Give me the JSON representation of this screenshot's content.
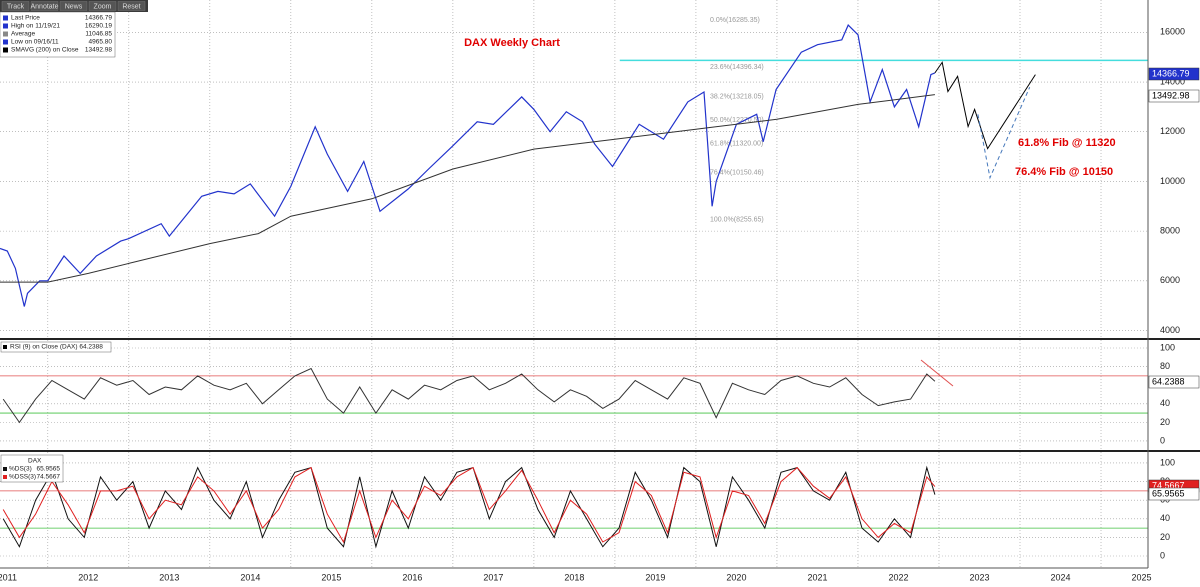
{
  "toolbar": [
    "Track",
    "Annotate",
    "News",
    "Zoom",
    "Reset"
  ],
  "chart_data": [
    {
      "type": "line",
      "title": "DAX Weekly Chart",
      "xlim": [
        2011.41,
        2025.58
      ],
      "ylim": [
        3700,
        17300
      ],
      "yticks": [
        4000,
        6000,
        8000,
        10000,
        12000,
        14000,
        16000
      ],
      "x_gridlines": [
        2012,
        2013,
        2014,
        2015,
        2016,
        2017,
        2018,
        2019,
        2020,
        2021,
        2022,
        2023,
        2024,
        2025
      ],
      "grid": true,
      "legend": [
        {
          "label": "Last Price",
          "value": "14366.79",
          "color": "#2233cc"
        },
        {
          "label": "High on 11/19/21",
          "value": "16290.19",
          "color": "#2233cc"
        },
        {
          "label": "Average",
          "value": "11046.85",
          "color": "#888888"
        },
        {
          "label": "Low on 09/16/11",
          "value": "4965.80",
          "color": "#2233cc"
        },
        {
          "label": "SMAVG (200)  on Close",
          "value": "13492.98",
          "color": "#000000"
        }
      ],
      "series": [
        {
          "color": "#2233cc",
          "x": [
            2011.41,
            2011.5,
            2011.6,
            2011.71,
            2011.75,
            2011.9,
            2012.0,
            2012.2,
            2012.4,
            2012.6,
            2012.9,
            2013.0,
            2013.4,
            2013.5,
            2013.9,
            2014.1,
            2014.3,
            2014.5,
            2014.8,
            2015.0,
            2015.3,
            2015.45,
            2015.7,
            2015.9,
            2016.1,
            2016.45,
            2016.7,
            2016.99,
            2017.3,
            2017.5,
            2017.85,
            2018.0,
            2018.2,
            2018.4,
            2018.6,
            2018.75,
            2018.97,
            2019.3,
            2019.6,
            2019.9,
            2020.1,
            2020.2,
            2020.25,
            2020.5,
            2020.75,
            2020.83,
            2020.99,
            2021.3,
            2021.5,
            2021.8,
            2021.88,
            2022.0,
            2022.15,
            2022.3,
            2022.45,
            2022.6,
            2022.75,
            2022.9,
            2022.95
          ],
          "values": [
            7300,
            7200,
            6500,
            4965.8,
            5500,
            6000,
            6000,
            7000,
            6300,
            7000,
            7600,
            7700,
            8300,
            7800,
            9400,
            9600,
            9500,
            9900,
            8600,
            9800,
            12200,
            11100,
            9600,
            10800,
            8800,
            9700,
            10500,
            11400,
            12400,
            12300,
            13400,
            12900,
            12000,
            12800,
            12400,
            11500,
            10600,
            12300,
            11700,
            13200,
            13600,
            9000,
            10000,
            12300,
            12700,
            11600,
            13700,
            15200,
            15500,
            15700,
            16290.19,
            15900,
            13200,
            14500,
            13000,
            13700,
            12200,
            14300,
            14366.79
          ]
        },
        {
          "color": "#333333",
          "x": [
            2011.41,
            2012.0,
            2012.5,
            2013.0,
            2014.0,
            2014.6,
            2015.0,
            2016.0,
            2017.0,
            2018.0,
            2019.0,
            2020.0,
            2021.0,
            2022.0,
            2022.95
          ],
          "values": [
            5950,
            5950,
            6300,
            6700,
            7500,
            7900,
            8600,
            9300,
            10500,
            11300,
            11700,
            12100,
            12500,
            13100,
            13492.98
          ]
        },
        {
          "color": "#000000",
          "x": [
            2022.95,
            2023.04,
            2023.11,
            2023.23,
            2023.36,
            2023.44,
            2023.6,
            2024.19
          ],
          "values": [
            14366.79,
            14790,
            13620,
            14230,
            12210,
            12900,
            11320,
            14300
          ]
        },
        {
          "color": "#4477bb",
          "dashed": true,
          "x": [
            2023.48,
            2023.63,
            2024.12
          ],
          "values": [
            12700,
            10150,
            13790
          ]
        }
      ],
      "hlines": [
        {
          "value": 14870,
          "from": 2019.06,
          "color": "#44dddd"
        }
      ],
      "fib_levels": [
        {
          "value": 16285.35,
          "label": "0.0%(16285.35)"
        },
        {
          "value": 14396.34,
          "label": "23.6%(14396.34)"
        },
        {
          "value": 13218.05,
          "label": "38.2%(13218.05)"
        },
        {
          "value": 12270.5,
          "label": "50.0%(12270.50)"
        },
        {
          "value": 11320.0,
          "label": "61.8%(11320.00)"
        },
        {
          "value": 10150.46,
          "label": "76.4%(10150.46)"
        },
        {
          "value": 8255.65,
          "label": "100.0%(8255.65)"
        }
      ],
      "annotations": [
        "61.8% Fib @ 11320",
        "76.4% Fib @ 10150"
      ]
    },
    {
      "type": "line",
      "legend": "RSI (9)  on Close (DAX) 64.2388",
      "value_tag": "64.2388",
      "xlim": [
        2011.41,
        2025.58
      ],
      "ylim": [
        -9.7,
        108.6
      ],
      "yticks": [
        0,
        20,
        40,
        80,
        100
      ],
      "x_gridlines": [
        2012,
        2013,
        2014,
        2015,
        2016,
        2017,
        2018,
        2019,
        2020,
        2021,
        2022,
        2023,
        2024,
        2025
      ],
      "hlines": [
        {
          "value": 70,
          "color": "#e05050"
        },
        {
          "value": 30,
          "color": "#40c040"
        }
      ],
      "series": [
        {
          "color": "#333333",
          "x": [
            2011.45,
            2011.65,
            2011.85,
            2012.05,
            2012.25,
            2012.45,
            2012.65,
            2012.85,
            2013.05,
            2013.25,
            2013.45,
            2013.65,
            2013.85,
            2014.05,
            2014.25,
            2014.45,
            2014.65,
            2014.85,
            2015.05,
            2015.25,
            2015.45,
            2015.65,
            2015.85,
            2016.05,
            2016.25,
            2016.45,
            2016.65,
            2016.85,
            2017.05,
            2017.25,
            2017.45,
            2017.65,
            2017.85,
            2018.05,
            2018.25,
            2018.45,
            2018.65,
            2018.85,
            2019.05,
            2019.25,
            2019.45,
            2019.65,
            2019.85,
            2020.05,
            2020.25,
            2020.45,
            2020.65,
            2020.85,
            2021.05,
            2021.25,
            2021.45,
            2021.65,
            2021.85,
            2022.05,
            2022.25,
            2022.45,
            2022.65,
            2022.85,
            2022.95
          ],
          "values": [
            45,
            20,
            45,
            65,
            55,
            45,
            68,
            60,
            65,
            50,
            58,
            55,
            70,
            60,
            55,
            62,
            40,
            55,
            70,
            78,
            45,
            30,
            58,
            30,
            55,
            45,
            60,
            55,
            65,
            70,
            55,
            62,
            72,
            55,
            42,
            55,
            48,
            35,
            45,
            65,
            55,
            45,
            68,
            62,
            25,
            62,
            55,
            50,
            65,
            70,
            62,
            58,
            68,
            50,
            38,
            42,
            45,
            72,
            64.2388
          ]
        }
      ]
    },
    {
      "type": "line",
      "legend_title": "DAX",
      "xlim": [
        2011.41,
        2025.58
      ],
      "ylim": [
        -12.9,
        111.8
      ],
      "yticks": [
        0,
        20,
        40,
        60,
        80,
        100
      ],
      "xticks": [
        {
          "value": 2011.5,
          "label": "2011"
        },
        {
          "value": 2012.5,
          "label": "2012"
        },
        {
          "value": 2013.5,
          "label": "2013"
        },
        {
          "value": 2014.5,
          "label": "2014"
        },
        {
          "value": 2015.5,
          "label": "2015"
        },
        {
          "value": 2016.5,
          "label": "2016"
        },
        {
          "value": 2017.5,
          "label": "2017"
        },
        {
          "value": 2018.5,
          "label": "2018"
        },
        {
          "value": 2019.5,
          "label": "2019"
        },
        {
          "value": 2020.5,
          "label": "2020"
        },
        {
          "value": 2021.5,
          "label": "2021"
        },
        {
          "value": 2022.5,
          "label": "2022"
        },
        {
          "value": 2023.5,
          "label": "2023"
        },
        {
          "value": 2024.5,
          "label": "2024"
        },
        {
          "value": 2025.5,
          "label": "2025"
        }
      ],
      "x_gridlines": [
        2012,
        2013,
        2014,
        2015,
        2016,
        2017,
        2018,
        2019,
        2020,
        2021,
        2022,
        2023,
        2024,
        2025
      ],
      "hlines": [
        {
          "value": 70,
          "color": "#e05050"
        },
        {
          "value": 30,
          "color": "#40c040"
        }
      ],
      "series": [
        {
          "name": "%DS(3)",
          "last_label": "65.9565",
          "color": "#111111",
          "x": [
            2011.45,
            2011.65,
            2011.85,
            2012.05,
            2012.25,
            2012.45,
            2012.65,
            2012.85,
            2013.05,
            2013.25,
            2013.45,
            2013.65,
            2013.85,
            2014.05,
            2014.25,
            2014.45,
            2014.65,
            2014.85,
            2015.05,
            2015.25,
            2015.45,
            2015.65,
            2015.85,
            2016.05,
            2016.25,
            2016.45,
            2016.65,
            2016.85,
            2017.05,
            2017.25,
            2017.45,
            2017.65,
            2017.85,
            2018.05,
            2018.25,
            2018.45,
            2018.65,
            2018.85,
            2019.05,
            2019.25,
            2019.45,
            2019.65,
            2019.85,
            2020.05,
            2020.25,
            2020.45,
            2020.65,
            2020.85,
            2021.05,
            2021.25,
            2021.45,
            2021.65,
            2021.85,
            2022.05,
            2022.25,
            2022.45,
            2022.65,
            2022.85,
            2022.95
          ],
          "values": [
            40,
            10,
            60,
            90,
            40,
            20,
            85,
            60,
            80,
            30,
            70,
            50,
            95,
            60,
            40,
            80,
            20,
            60,
            90,
            95,
            30,
            10,
            85,
            10,
            70,
            30,
            85,
            60,
            90,
            95,
            40,
            80,
            95,
            50,
            20,
            70,
            40,
            10,
            30,
            90,
            60,
            20,
            95,
            80,
            10,
            85,
            60,
            30,
            90,
            95,
            70,
            60,
            90,
            30,
            15,
            40,
            20,
            95,
            65.9565
          ]
        },
        {
          "name": "%DSS(3)",
          "last_label": "74.5667",
          "color": "#e02020",
          "x": [
            2011.45,
            2011.65,
            2011.85,
            2012.05,
            2012.25,
            2012.45,
            2012.65,
            2012.85,
            2013.05,
            2013.25,
            2013.45,
            2013.65,
            2013.85,
            2014.05,
            2014.25,
            2014.45,
            2014.65,
            2014.85,
            2015.05,
            2015.25,
            2015.45,
            2015.65,
            2015.85,
            2016.05,
            2016.25,
            2016.45,
            2016.65,
            2016.85,
            2017.05,
            2017.25,
            2017.45,
            2017.65,
            2017.85,
            2018.05,
            2018.25,
            2018.45,
            2018.65,
            2018.85,
            2019.05,
            2019.25,
            2019.45,
            2019.65,
            2019.85,
            2020.05,
            2020.25,
            2020.45,
            2020.65,
            2020.85,
            2021.05,
            2021.25,
            2021.45,
            2021.65,
            2021.85,
            2022.05,
            2022.25,
            2022.45,
            2022.65,
            2022.85,
            2022.95
          ],
          "values": [
            50,
            20,
            45,
            80,
            55,
            25,
            70,
            70,
            75,
            40,
            60,
            55,
            85,
            70,
            45,
            70,
            30,
            50,
            85,
            95,
            45,
            15,
            70,
            20,
            60,
            40,
            75,
            65,
            85,
            95,
            50,
            70,
            92,
            60,
            25,
            60,
            45,
            15,
            25,
            80,
            65,
            25,
            90,
            85,
            20,
            70,
            65,
            35,
            80,
            95,
            75,
            62,
            85,
            40,
            20,
            35,
            25,
            85,
            74.5667
          ]
        }
      ]
    }
  ]
}
